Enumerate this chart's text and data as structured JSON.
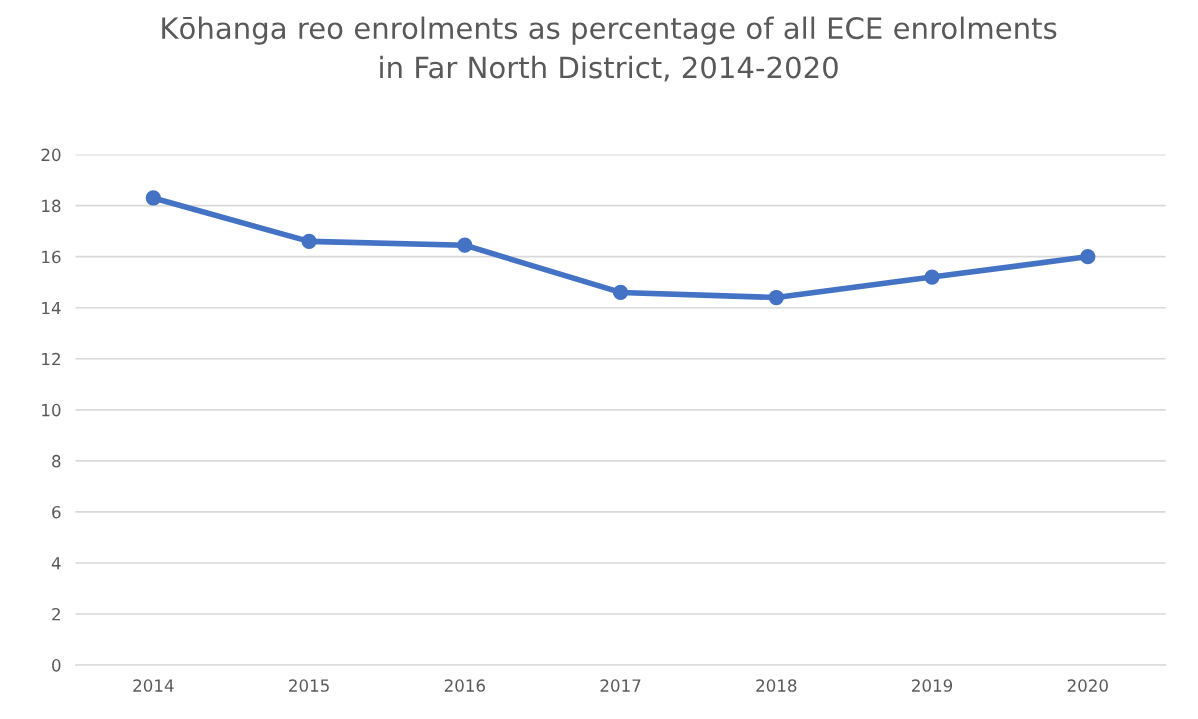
{
  "chart_data": {
    "type": "line",
    "title": "Kōhanga reo enrolments as percentage of all ECE enrolments\nin Far North District, 2014-2020",
    "categories": [
      "2014",
      "2015",
      "2016",
      "2017",
      "2018",
      "2019",
      "2020"
    ],
    "series": [
      {
        "color": "#4472c4",
        "values": [
          18.3,
          16.6,
          16.45,
          14.6,
          14.4,
          15.2,
          16.0
        ]
      }
    ],
    "ylim": [
      0,
      20
    ],
    "yticks": [
      0,
      2,
      4,
      6,
      8,
      10,
      12,
      14,
      16,
      18,
      20
    ],
    "grid": "y",
    "marker": "circle",
    "line_style": "solid"
  }
}
